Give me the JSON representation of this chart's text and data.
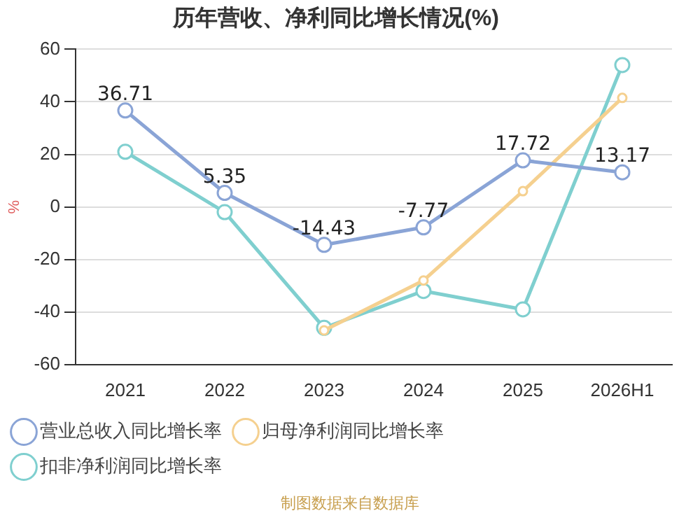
{
  "chart_data": {
    "type": "line",
    "title": "历年营收、净利同比增长情况(%)",
    "ylabel": "%",
    "categories": [
      "2021",
      "2022",
      "2023",
      "2024",
      "2025",
      "2026H1"
    ],
    "series": [
      {
        "name": "营业总收入同比增长率",
        "color": "#8aa4d6",
        "values": [
          36.71,
          5.35,
          -14.43,
          -7.77,
          17.72,
          13.17
        ],
        "data_labels": true
      },
      {
        "name": "归母净利润同比增长率",
        "color": "#f5d08f",
        "values": [
          null,
          null,
          -47,
          -28,
          6,
          41.5
        ]
      },
      {
        "name": "扣非净利润同比增长率",
        "color": "#7fcfcf",
        "values": [
          21,
          -2,
          -46,
          -32,
          -39,
          54
        ]
      }
    ],
    "ylim": [
      -60,
      60
    ],
    "yticks": [
      -60,
      -40,
      -20,
      0,
      20,
      40,
      60
    ],
    "grid": "y",
    "legend": "bottom",
    "marker": "circle",
    "annotations": [
      "制图数据来自数据库"
    ]
  }
}
